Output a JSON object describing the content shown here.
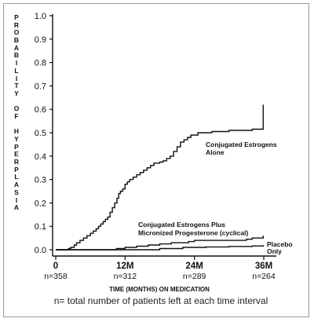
{
  "chart_data": {
    "type": "line",
    "ylabel_letters": [
      "P",
      "R",
      "O",
      "B",
      "A",
      "B",
      "I",
      "L",
      "I",
      "T",
      "Y",
      "",
      "O",
      "F",
      "",
      "H",
      "Y",
      "P",
      "E",
      "R",
      "P",
      "L",
      "A",
      "S",
      "I",
      "A"
    ],
    "yticks": [
      0.0,
      0.1,
      0.2,
      0.3,
      0.4,
      0.5,
      0.6,
      0.7,
      0.8,
      0.9,
      1.0
    ],
    "ytick_labels": [
      "0.0",
      "0.1",
      "0.2",
      "0.3",
      "0.4",
      "0.5",
      "0.6",
      "0.7",
      "0.8",
      "0.9",
      "1.0"
    ],
    "ylim": [
      0,
      1.0
    ],
    "xlim": [
      0,
      36
    ],
    "xticks": [
      {
        "x": 0,
        "label": "0",
        "n": "n=358"
      },
      {
        "x": 12,
        "label": "12M",
        "n": "n=312"
      },
      {
        "x": 24,
        "label": "24M",
        "n": "n=289"
      },
      {
        "x": 36,
        "label": "36M",
        "n": "n=264"
      }
    ],
    "xlabel": "TIME (MONTHS) ON MEDICATION",
    "footnote": "n= total number of patients left at each time interval",
    "series": [
      {
        "name": "Conjugated Estrogens Alone",
        "points": [
          [
            0,
            0
          ],
          [
            1.8,
            0
          ],
          [
            2.2,
            0.005
          ],
          [
            2.6,
            0.01
          ],
          [
            3.2,
            0.02
          ],
          [
            3.6,
            0.03
          ],
          [
            4.2,
            0.04
          ],
          [
            4.8,
            0.05
          ],
          [
            5.4,
            0.06
          ],
          [
            6.0,
            0.07
          ],
          [
            6.5,
            0.08
          ],
          [
            7.0,
            0.09
          ],
          [
            7.4,
            0.1
          ],
          [
            7.8,
            0.11
          ],
          [
            8.2,
            0.12
          ],
          [
            8.6,
            0.13
          ],
          [
            9.0,
            0.14
          ],
          [
            9.4,
            0.16
          ],
          [
            9.8,
            0.18
          ],
          [
            10.2,
            0.2
          ],
          [
            10.6,
            0.22
          ],
          [
            10.9,
            0.24
          ],
          [
            11.2,
            0.25
          ],
          [
            11.6,
            0.26
          ],
          [
            12.0,
            0.28
          ],
          [
            12.4,
            0.29
          ],
          [
            12.8,
            0.3
          ],
          [
            13.4,
            0.31
          ],
          [
            14.0,
            0.32
          ],
          [
            14.6,
            0.33
          ],
          [
            15.2,
            0.34
          ],
          [
            15.8,
            0.35
          ],
          [
            16.4,
            0.36
          ],
          [
            17.0,
            0.37
          ],
          [
            18.0,
            0.375
          ],
          [
            18.6,
            0.38
          ],
          [
            19.2,
            0.39
          ],
          [
            19.8,
            0.4
          ],
          [
            20.4,
            0.42
          ],
          [
            21.0,
            0.44
          ],
          [
            21.6,
            0.46
          ],
          [
            22.2,
            0.47
          ],
          [
            22.8,
            0.48
          ],
          [
            23.4,
            0.49
          ],
          [
            24.0,
            0.49
          ],
          [
            24.6,
            0.5
          ],
          [
            26.0,
            0.5
          ],
          [
            27.0,
            0.505
          ],
          [
            29.0,
            0.505
          ],
          [
            30.0,
            0.51
          ],
          [
            33.0,
            0.51
          ],
          [
            34.0,
            0.515
          ],
          [
            35.0,
            0.515
          ],
          [
            35.9,
            0.52
          ],
          [
            35.9,
            0.62
          ]
        ],
        "label_lines": [
          "Conjugated Estrogens",
          "Alone"
        ]
      },
      {
        "name": "Conjugated Estrogens Plus Micronized Progesterone (cyclical)",
        "points": [
          [
            0,
            0
          ],
          [
            9,
            0
          ],
          [
            10.5,
            0.005
          ],
          [
            12,
            0.01
          ],
          [
            14,
            0.015
          ],
          [
            16,
            0.02
          ],
          [
            18,
            0.025
          ],
          [
            20,
            0.03
          ],
          [
            23,
            0.035
          ],
          [
            24,
            0.04
          ],
          [
            30,
            0.04
          ],
          [
            33,
            0.045
          ],
          [
            34,
            0.05
          ],
          [
            35.9,
            0.05
          ],
          [
            35.9,
            0.06
          ]
        ],
        "label_lines": [
          "Conjugated Estrogens Plus",
          "Micronized Progesterone (cyclical)"
        ]
      },
      {
        "name": "Placebo Only",
        "points": [
          [
            0,
            0
          ],
          [
            14,
            0
          ],
          [
            18,
            0.005
          ],
          [
            22,
            0.01
          ],
          [
            26,
            0.012
          ],
          [
            30,
            0.014
          ],
          [
            34,
            0.016
          ],
          [
            35.9,
            0.018
          ],
          [
            35.9,
            0.02
          ]
        ],
        "label_lines": [
          "Placebo",
          "Only"
        ]
      }
    ]
  }
}
